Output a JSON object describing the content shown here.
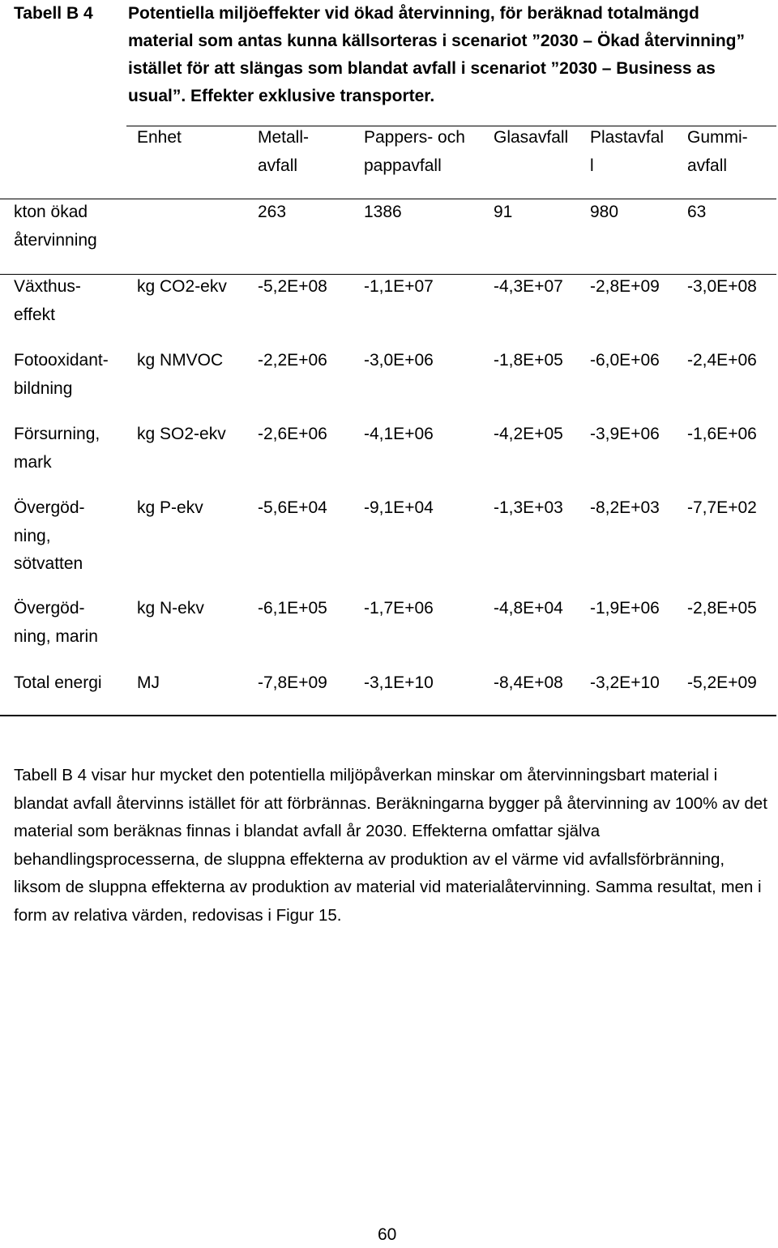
{
  "caption": {
    "label": "Tabell B 4",
    "text": "Potentiella miljöeffekter vid ökad återvinning, för beräknad totalmängd material som antas kunna källsorteras i scenariot ”2030 – Ökad återvinning” istället för att slängas som blandat avfall i scenariot ”2030 – Business as usual”. Effekter exklusive transporter."
  },
  "table": {
    "headers": [
      "",
      "Enhet",
      "Metall-\navfall",
      "Pappers- och\npappavfall",
      "Glasavfall",
      "Plastavfal\nl",
      "Gummi-\navfall"
    ],
    "rows": [
      [
        "kton ökad\nåtervinning",
        "",
        "263",
        "1386",
        "91",
        "980",
        "63"
      ],
      [
        "Växthus-\neffekt",
        "kg CO2-ekv",
        "-5,2E+08",
        "-1,1E+07",
        "-4,3E+07",
        "-2,8E+09",
        "-3,0E+08"
      ],
      [
        "Fotooxidant-\nbildning",
        "kg NMVOC",
        "-2,2E+06",
        "-3,0E+06",
        "-1,8E+05",
        "-6,0E+06",
        "-2,4E+06"
      ],
      [
        "Försurning,\nmark",
        "kg SO2-ekv",
        "-2,6E+06",
        "-4,1E+06",
        "-4,2E+05",
        "-3,9E+06",
        "-1,6E+06"
      ],
      [
        "Övergöd-\nning,\nsötvatten",
        "kg P-ekv",
        "-5,6E+04",
        "-9,1E+04",
        "-1,3E+03",
        "-8,2E+03",
        "-7,7E+02"
      ],
      [
        "Övergöd-\nning, marin",
        "kg N-ekv",
        "-6,1E+05",
        "-1,7E+06",
        "-4,8E+04",
        "-1,9E+06",
        "-2,8E+05"
      ],
      [
        "Total energi",
        "MJ",
        "-7,8E+09",
        "-3,1E+10",
        "-8,4E+08",
        "-3,2E+10",
        "-5,2E+09"
      ]
    ]
  },
  "paragraph": "Tabell B 4 visar hur mycket den potentiella miljöpåverkan minskar om återvinningsbart material i blandat avfall återvinns istället för att förbrännas. Beräkningarna bygger på återvinning av 100% av det material som beräknas finnas i blandat avfall år 2030. Effekterna omfattar själva behandlingsprocesserna, de sluppna effekterna av produktion av el värme vid avfallsförbränning, liksom de sluppna effekterna av produktion av material vid materialåtervinning. Samma resultat, men i form av relativa värden, redovisas i Figur 15.",
  "page_number": "60"
}
